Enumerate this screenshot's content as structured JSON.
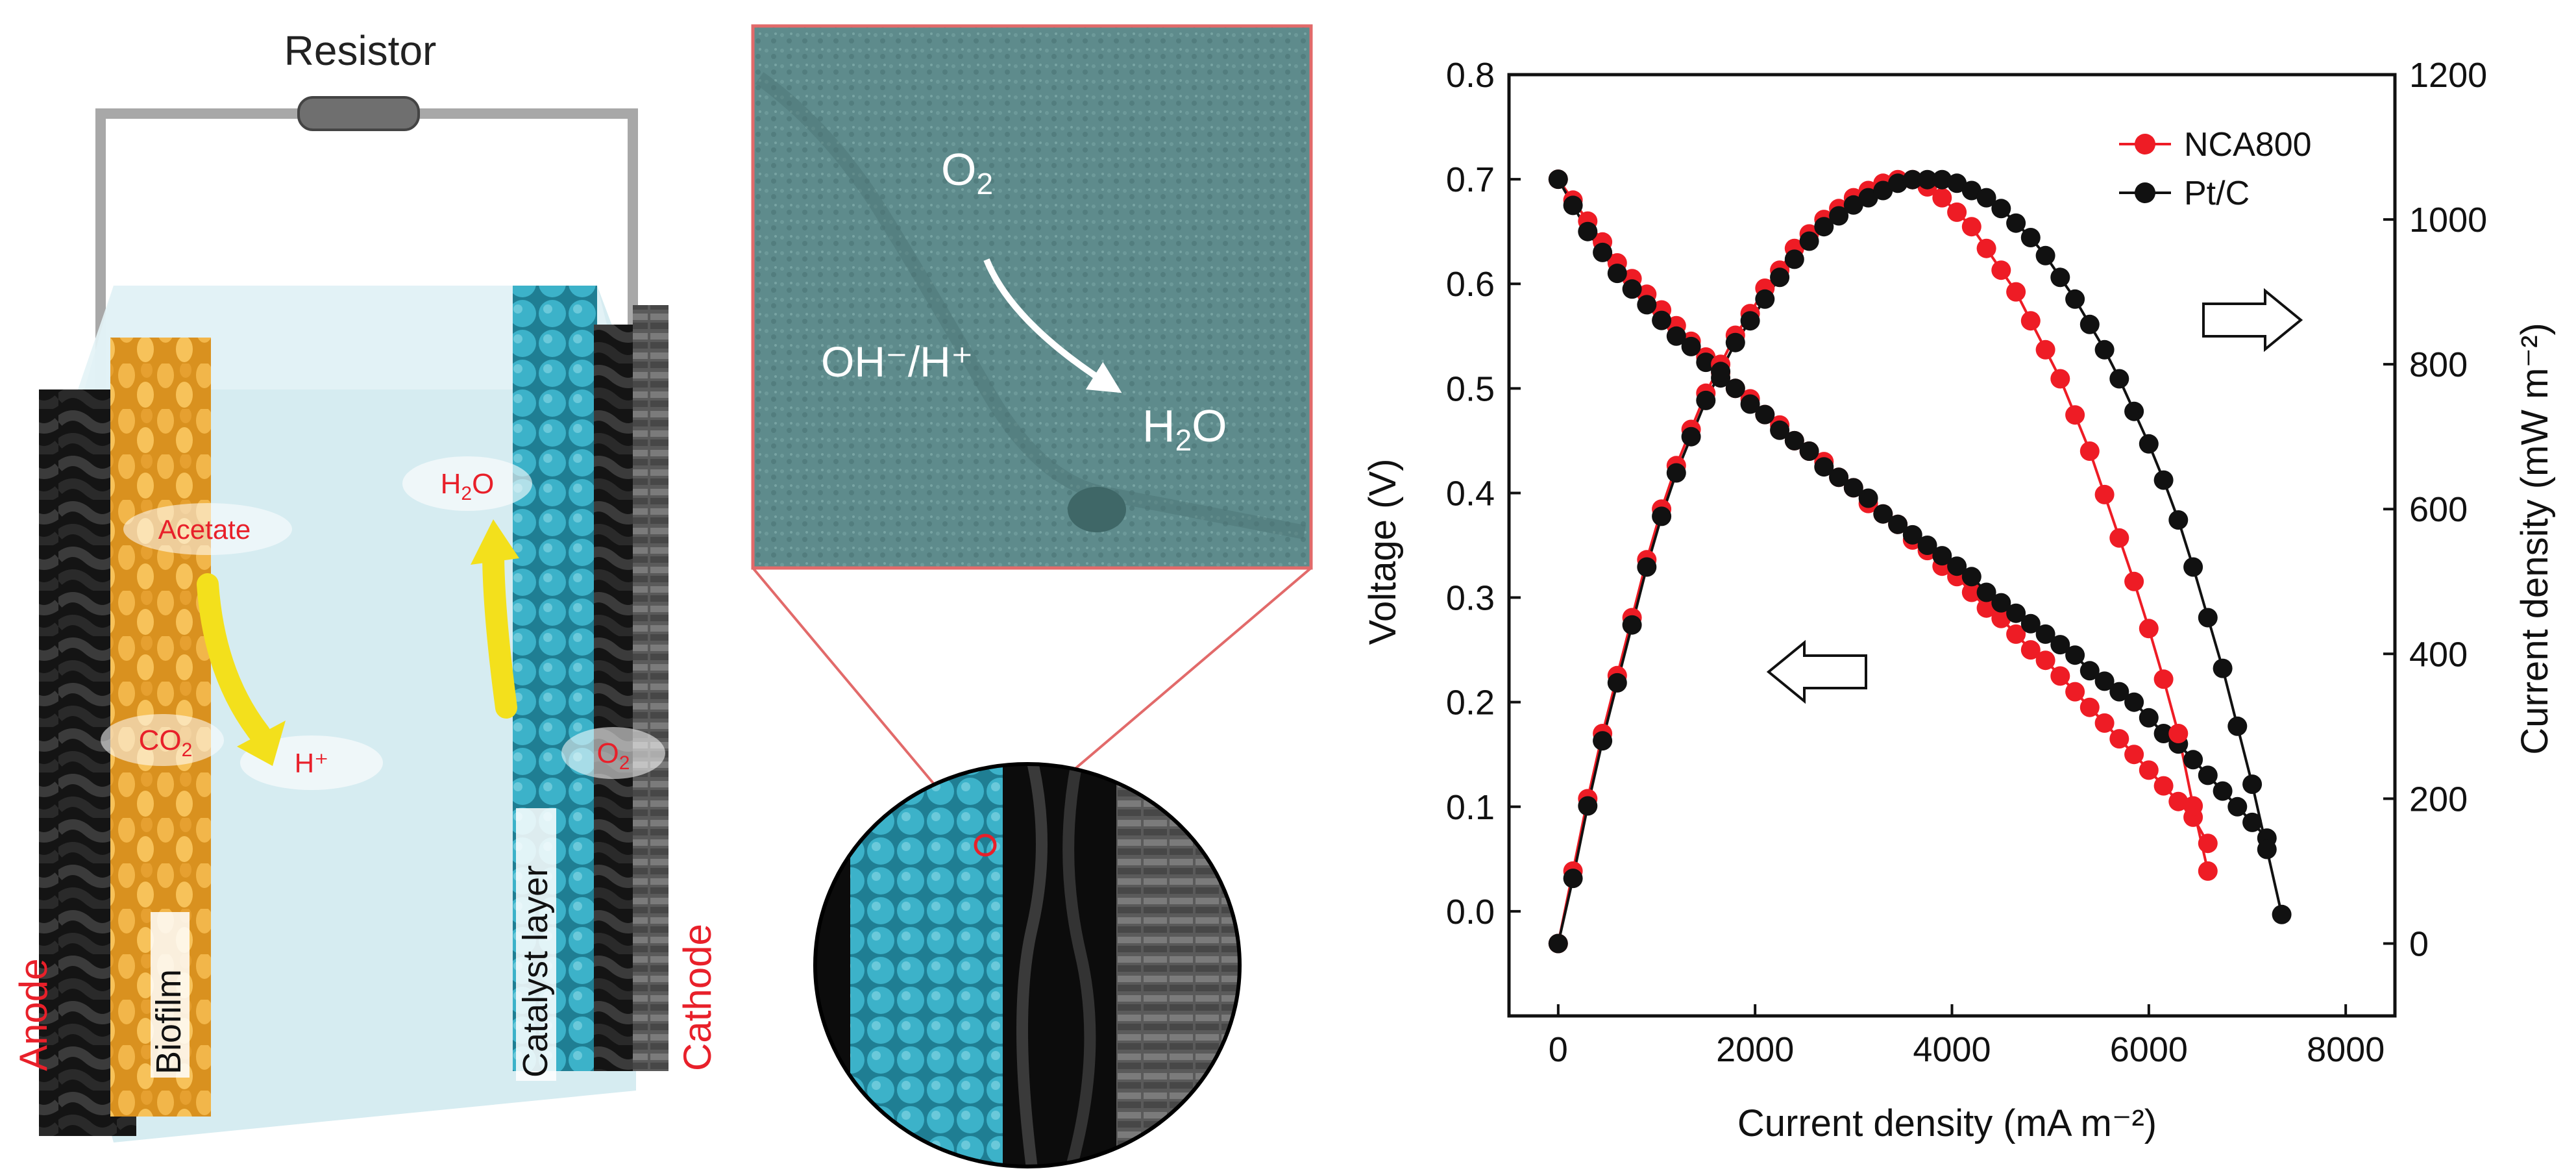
{
  "schematic": {
    "resistor_label": "Resistor",
    "anode_label": "Anode",
    "cathode_label": "Cathode",
    "biofilm_label": "Biofilm",
    "catalyst_label": "Catalyst layer",
    "acetate_label": "Acetate",
    "co2_main": "CO",
    "co2_sub": "2",
    "h_plus": "H⁺",
    "h2o_main": "H",
    "h2o_sub": "2",
    "h2o_tail": "O",
    "o2_main": "O",
    "o2_sub": "2",
    "colors": {
      "anode_fiber": "#1a1a1a",
      "biofilm": "#e8a630",
      "catalyst": "#3aa8c0",
      "electrolyte": "#cfeaf0",
      "label_red": "#e8202a"
    }
  },
  "tem": {
    "o2_main": "O",
    "o2_sub": "2",
    "ohh_text": "OH⁻/H⁺",
    "h2o_main": "H",
    "h2o_sub": "2",
    "h2o_tail": "O",
    "colors": {
      "image": "#5f8f8f",
      "frame": "#e26a6a"
    }
  },
  "chart_data": {
    "type": "line",
    "xlabel": "Current density (mA m⁻²)",
    "ylabel_left": "Voltage (V)",
    "ylabel_right": "Current density (mW m⁻²)",
    "xlim": [
      -500,
      8500
    ],
    "ylim_left": [
      -0.1,
      0.8
    ],
    "ylim_right": [
      -100,
      1200
    ],
    "x_ticks": [
      0,
      2000,
      4000,
      6000,
      8000
    ],
    "y_ticks_left": [
      0.0,
      0.1,
      0.2,
      0.3,
      0.4,
      0.5,
      0.6,
      0.7,
      0.8
    ],
    "y_ticks_right": [
      0,
      200,
      400,
      600,
      800,
      1000,
      1200
    ],
    "legend_position": "top-right",
    "grid": false,
    "series": [
      {
        "name": "NCA800",
        "color": "#ee1c25",
        "axis": "left",
        "kind": "polarization",
        "points": [
          [
            0,
            0.7
          ],
          [
            150,
            0.68
          ],
          [
            300,
            0.66
          ],
          [
            450,
            0.64
          ],
          [
            600,
            0.62
          ],
          [
            750,
            0.605
          ],
          [
            900,
            0.59
          ],
          [
            1050,
            0.575
          ],
          [
            1200,
            0.56
          ],
          [
            1350,
            0.545
          ],
          [
            1500,
            0.53
          ],
          [
            1650,
            0.515
          ],
          [
            1800,
            0.5
          ],
          [
            1950,
            0.49
          ],
          [
            2100,
            0.475
          ],
          [
            2250,
            0.465
          ],
          [
            2400,
            0.45
          ],
          [
            2550,
            0.44
          ],
          [
            2700,
            0.43
          ],
          [
            2850,
            0.415
          ],
          [
            3000,
            0.405
          ],
          [
            3150,
            0.39
          ],
          [
            3300,
            0.38
          ],
          [
            3450,
            0.37
          ],
          [
            3600,
            0.355
          ],
          [
            3750,
            0.345
          ],
          [
            3900,
            0.33
          ],
          [
            4050,
            0.32
          ],
          [
            4200,
            0.305
          ],
          [
            4350,
            0.29
          ],
          [
            4500,
            0.28
          ],
          [
            4650,
            0.265
          ],
          [
            4800,
            0.25
          ],
          [
            4950,
            0.24
          ],
          [
            5100,
            0.225
          ],
          [
            5250,
            0.21
          ],
          [
            5400,
            0.195
          ],
          [
            5550,
            0.18
          ],
          [
            5700,
            0.165
          ],
          [
            5850,
            0.15
          ],
          [
            6000,
            0.135
          ],
          [
            6150,
            0.12
          ],
          [
            6300,
            0.105
          ],
          [
            6450,
            0.09
          ],
          [
            6600,
            0.065
          ]
        ]
      },
      {
        "name": "Pt/C",
        "color": "#111111",
        "axis": "left",
        "kind": "polarization",
        "points": [
          [
            0,
            0.7
          ],
          [
            150,
            0.675
          ],
          [
            300,
            0.65
          ],
          [
            450,
            0.63
          ],
          [
            600,
            0.61
          ],
          [
            750,
            0.595
          ],
          [
            900,
            0.58
          ],
          [
            1050,
            0.565
          ],
          [
            1200,
            0.55
          ],
          [
            1350,
            0.54
          ],
          [
            1500,
            0.525
          ],
          [
            1650,
            0.51
          ],
          [
            1800,
            0.5
          ],
          [
            1950,
            0.485
          ],
          [
            2100,
            0.475
          ],
          [
            2250,
            0.46
          ],
          [
            2400,
            0.45
          ],
          [
            2550,
            0.44
          ],
          [
            2700,
            0.425
          ],
          [
            2850,
            0.415
          ],
          [
            3000,
            0.405
          ],
          [
            3150,
            0.395
          ],
          [
            3300,
            0.38
          ],
          [
            3450,
            0.37
          ],
          [
            3600,
            0.36
          ],
          [
            3750,
            0.35
          ],
          [
            3900,
            0.34
          ],
          [
            4050,
            0.33
          ],
          [
            4200,
            0.32
          ],
          [
            4350,
            0.305
          ],
          [
            4500,
            0.295
          ],
          [
            4650,
            0.285
          ],
          [
            4800,
            0.275
          ],
          [
            4950,
            0.265
          ],
          [
            5100,
            0.255
          ],
          [
            5250,
            0.245
          ],
          [
            5400,
            0.23
          ],
          [
            5550,
            0.22
          ],
          [
            5700,
            0.21
          ],
          [
            5850,
            0.2
          ],
          [
            6000,
            0.185
          ],
          [
            6150,
            0.17
          ],
          [
            6300,
            0.16
          ],
          [
            6450,
            0.145
          ],
          [
            6600,
            0.13
          ],
          [
            6750,
            0.115
          ],
          [
            6900,
            0.1
          ],
          [
            7050,
            0.085
          ],
          [
            7200,
            0.07
          ]
        ]
      },
      {
        "name": "NCA800",
        "color": "#ee1c25",
        "axis": "right",
        "kind": "power",
        "points": [
          [
            0,
            0
          ],
          [
            150,
            100
          ],
          [
            300,
            200
          ],
          [
            450,
            290
          ],
          [
            600,
            370
          ],
          [
            750,
            450
          ],
          [
            900,
            530
          ],
          [
            1050,
            600
          ],
          [
            1200,
            660
          ],
          [
            1350,
            710
          ],
          [
            1500,
            760
          ],
          [
            1650,
            800
          ],
          [
            1800,
            840
          ],
          [
            1950,
            870
          ],
          [
            2100,
            905
          ],
          [
            2250,
            930
          ],
          [
            2400,
            960
          ],
          [
            2550,
            980
          ],
          [
            2700,
            1000
          ],
          [
            2850,
            1015
          ],
          [
            3000,
            1030
          ],
          [
            3150,
            1040
          ],
          [
            3300,
            1050
          ],
          [
            3450,
            1055
          ],
          [
            3600,
            1055
          ],
          [
            3750,
            1045
          ],
          [
            3900,
            1030
          ],
          [
            4050,
            1010
          ],
          [
            4200,
            990
          ],
          [
            4350,
            960
          ],
          [
            4500,
            930
          ],
          [
            4650,
            900
          ],
          [
            4800,
            860
          ],
          [
            4950,
            820
          ],
          [
            5100,
            780
          ],
          [
            5250,
            730
          ],
          [
            5400,
            680
          ],
          [
            5550,
            620
          ],
          [
            5700,
            560
          ],
          [
            5850,
            500
          ],
          [
            6000,
            435
          ],
          [
            6150,
            365
          ],
          [
            6300,
            290
          ],
          [
            6450,
            190
          ],
          [
            6600,
            100
          ]
        ]
      },
      {
        "name": "Pt/C",
        "color": "#111111",
        "axis": "right",
        "kind": "power",
        "points": [
          [
            0,
            0
          ],
          [
            150,
            90
          ],
          [
            300,
            190
          ],
          [
            450,
            280
          ],
          [
            600,
            360
          ],
          [
            750,
            440
          ],
          [
            900,
            520
          ],
          [
            1050,
            590
          ],
          [
            1200,
            650
          ],
          [
            1350,
            700
          ],
          [
            1500,
            750
          ],
          [
            1650,
            790
          ],
          [
            1800,
            830
          ],
          [
            1950,
            860
          ],
          [
            2100,
            890
          ],
          [
            2250,
            920
          ],
          [
            2400,
            945
          ],
          [
            2550,
            970
          ],
          [
            2700,
            990
          ],
          [
            2850,
            1005
          ],
          [
            3000,
            1020
          ],
          [
            3150,
            1030
          ],
          [
            3300,
            1040
          ],
          [
            3450,
            1050
          ],
          [
            3600,
            1055
          ],
          [
            3750,
            1055
          ],
          [
            3900,
            1055
          ],
          [
            4050,
            1050
          ],
          [
            4200,
            1040
          ],
          [
            4350,
            1030
          ],
          [
            4500,
            1015
          ],
          [
            4650,
            995
          ],
          [
            4800,
            975
          ],
          [
            4950,
            950
          ],
          [
            5100,
            920
          ],
          [
            5250,
            890
          ],
          [
            5400,
            855
          ],
          [
            5550,
            820
          ],
          [
            5700,
            780
          ],
          [
            5850,
            735
          ],
          [
            6000,
            690
          ],
          [
            6150,
            640
          ],
          [
            6300,
            585
          ],
          [
            6450,
            520
          ],
          [
            6600,
            450
          ],
          [
            6750,
            380
          ],
          [
            6900,
            300
          ],
          [
            7050,
            220
          ],
          [
            7200,
            130
          ],
          [
            7350,
            40
          ]
        ]
      }
    ]
  }
}
